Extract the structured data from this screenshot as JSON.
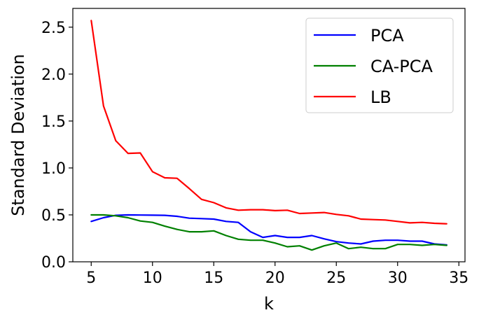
{
  "chart_data": {
    "type": "line",
    "title": "",
    "xlabel": "k",
    "ylabel": "Standard Deviation",
    "xlim": [
      3.5,
      35.5
    ],
    "ylim": [
      0,
      2.7
    ],
    "x_ticks": [
      5,
      10,
      15,
      20,
      25,
      30,
      35
    ],
    "x_tick_labels": [
      "5",
      "10",
      "15",
      "20",
      "25",
      "30",
      "35"
    ],
    "y_ticks": [
      0.0,
      0.5,
      1.0,
      1.5,
      2.0,
      2.5
    ],
    "y_tick_labels": [
      "0.0",
      "0.5",
      "1.0",
      "1.5",
      "2.0",
      "2.5"
    ],
    "grid": false,
    "legend_position": "top-right",
    "x": [
      5,
      6,
      7,
      8,
      9,
      10,
      11,
      12,
      13,
      14,
      15,
      16,
      17,
      18,
      19,
      20,
      21,
      22,
      23,
      24,
      25,
      26,
      27,
      28,
      29,
      30,
      31,
      32,
      33,
      34
    ],
    "series": [
      {
        "name": "PCA",
        "color": "#0000ff",
        "values": [
          0.43,
          0.47,
          0.495,
          0.5,
          0.498,
          0.497,
          0.495,
          0.485,
          0.465,
          0.46,
          0.455,
          0.43,
          0.42,
          0.32,
          0.26,
          0.28,
          0.26,
          0.26,
          0.28,
          0.245,
          0.215,
          0.2,
          0.19,
          0.22,
          0.23,
          0.23,
          0.22,
          0.22,
          0.19,
          0.18
        ]
      },
      {
        "name": "CA-PCA",
        "color": "#008000",
        "values": [
          0.5,
          0.5,
          0.49,
          0.47,
          0.435,
          0.42,
          0.38,
          0.345,
          0.32,
          0.32,
          0.33,
          0.28,
          0.24,
          0.23,
          0.23,
          0.2,
          0.16,
          0.17,
          0.125,
          0.17,
          0.2,
          0.14,
          0.155,
          0.14,
          0.14,
          0.185,
          0.185,
          0.175,
          0.185,
          0.175
        ]
      },
      {
        "name": "LB",
        "color": "#ff0000",
        "values": [
          2.57,
          1.66,
          1.29,
          1.155,
          1.16,
          0.96,
          0.895,
          0.89,
          0.78,
          0.665,
          0.63,
          0.575,
          0.55,
          0.555,
          0.555,
          0.545,
          0.55,
          0.515,
          0.52,
          0.525,
          0.505,
          0.49,
          0.455,
          0.45,
          0.445,
          0.43,
          0.415,
          0.42,
          0.41,
          0.405
        ]
      }
    ]
  }
}
